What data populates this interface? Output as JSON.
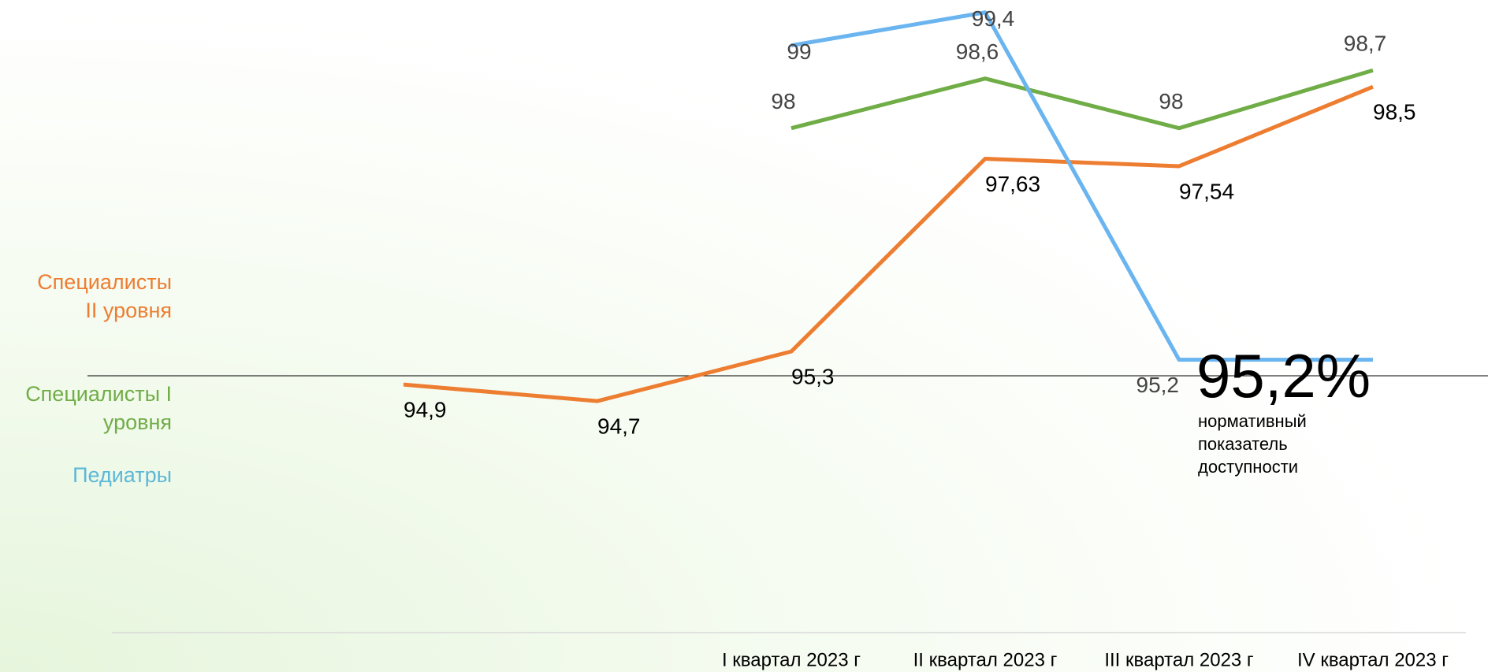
{
  "chart_data": {
    "type": "line",
    "categories": [
      null,
      null,
      "I квартал 2023 г",
      "II квартал 2023 г",
      "III квартал 2023 г",
      "IV квартал 2023 г"
    ],
    "series": [
      {
        "name": "Специалисты II уровня",
        "color": "#ed7d31",
        "values": [
          94.9,
          94.7,
          95.3,
          97.63,
          97.54,
          98.5
        ],
        "value_labels": [
          "94,9",
          "94,7",
          "95,3",
          "97,63",
          "97,54",
          "98,5"
        ]
      },
      {
        "name": "Специалисты I уровня",
        "color": "#70ad47",
        "values": [
          null,
          null,
          98,
          98.6,
          98,
          98.7
        ],
        "value_labels": [
          null,
          null,
          "98",
          "98,6",
          "98",
          "98,7"
        ]
      },
      {
        "name": "Педиатры",
        "color": "#5cb8d8",
        "line_color": "#6ab4f0",
        "values": [
          null,
          null,
          99,
          99.4,
          95.2,
          95.2
        ],
        "value_labels": [
          null,
          null,
          "99",
          "99,4",
          "95,2",
          null
        ]
      }
    ],
    "annotations": [
      "95,2%",
      "нормативный показатель доступности"
    ],
    "ylim": [
      91.9,
      99.55
    ]
  }
}
